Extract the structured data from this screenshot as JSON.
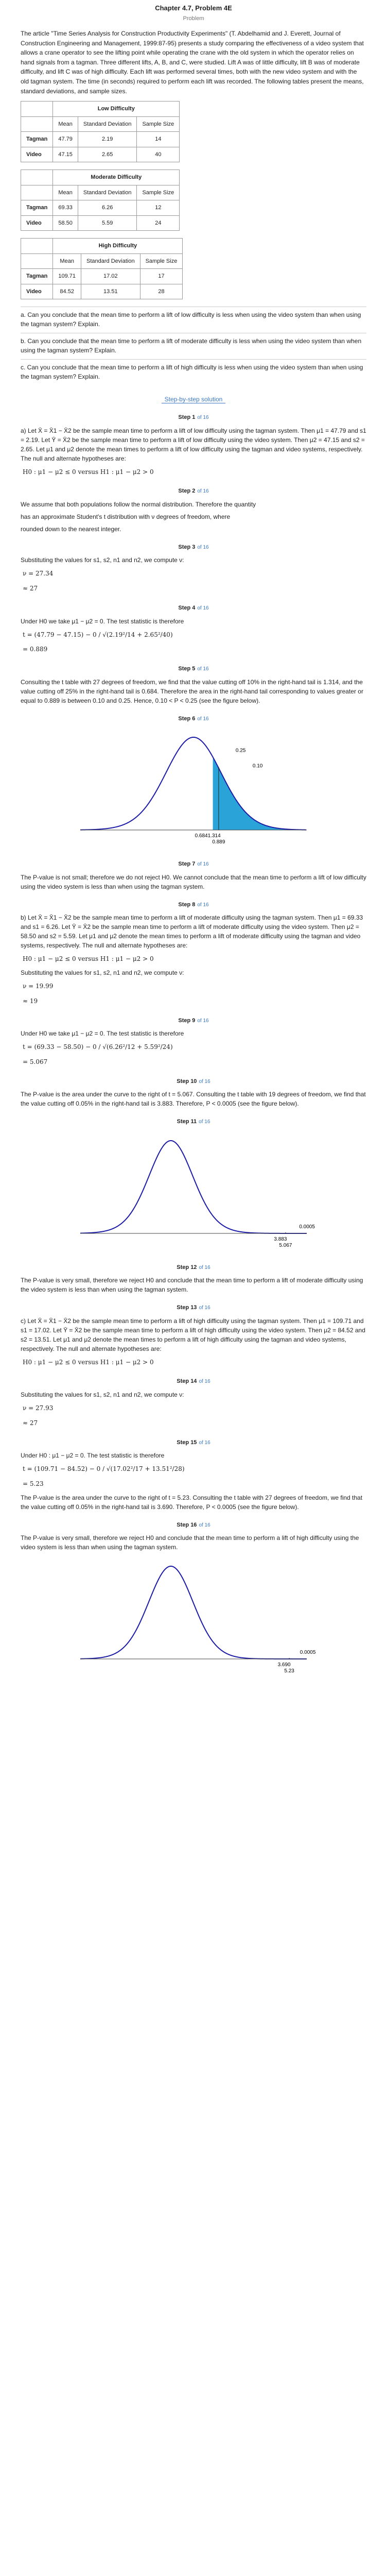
{
  "header": {
    "chapter_title": "Chapter 4.7, Problem 4E",
    "problem_label": "Problem"
  },
  "problem": {
    "text": "The article \"Time Series Analysis for Construction Productivity Experiments\" (T. Abdelhamid and J. Everett, Journal of Construction Engineering and Management, 1999:87-95) presents a study comparing the effectiveness of a video system that allows a crane operator to see the lifting point while operating the crane with the old system in which the operator relies on hand signals from a tagman. Three different lifts, A, B, and C, were studied. Lift A was of little difficulty, lift B was of moderate difficulty, and lift C was of high difficulty. Each lift was performed several times, both with the new video system and with the old tagman system. The time (in seconds) required to perform each lift was recorded. The following tables present the means, standard deviations, and sample sizes."
  },
  "tables": [
    {
      "caption": "Low Difficulty",
      "headers": [
        "",
        "Mean",
        "Standard Deviation",
        "Sample Size"
      ],
      "rows": [
        [
          "Tagman",
          "47.79",
          "2.19",
          "14"
        ],
        [
          "Video",
          "47.15",
          "2.65",
          "40"
        ]
      ]
    },
    {
      "caption": "Moderate Difficulty",
      "headers": [
        "",
        "Mean",
        "Standard Deviation",
        "Sample Size"
      ],
      "rows": [
        [
          "Tagman",
          "69.33",
          "6.26",
          "12"
        ],
        [
          "Video",
          "58.50",
          "5.59",
          "24"
        ]
      ]
    },
    {
      "caption": "High Difficulty",
      "headers": [
        "",
        "Mean",
        "Standard Deviation",
        "Sample Size"
      ],
      "rows": [
        [
          "Tagman",
          "109.71",
          "17.02",
          "17"
        ],
        [
          "Video",
          "84.52",
          "13.51",
          "28"
        ]
      ]
    }
  ],
  "questions": [
    "a. Can you conclude that the mean time to perform a lift of low difficulty is less when using the video system than when using the tagman system? Explain.",
    "b. Can you conclude that the mean time to perform a lift of moderate difficulty is less when using the video system than when using the tagman system? Explain.",
    "c. Can you conclude that the mean time to perform a lift of high difficulty is less when using the video system than when using the tagman system? Explain."
  ],
  "divider_label": "Step-by-step solution",
  "steps": [
    {
      "title": "Step 1",
      "sec": "of 16",
      "paras": [
        "a) Let X̄ = X̄1 − X̄2 be the sample mean time to perform a lift of low difficulty using the tagman system. Then μ1 = 47.79 and s1 = 2.19. Let Ȳ = X̄2 be the sample mean time to perform a lift of low difficulty using the video system. Then μ2 = 47.15 and s2 = 2.65. Let μ1 and μ2 denote the mean times to perform a lift of low difficulty using the tagman and video systems, respectively. The null and alternate hypotheses are:",
        "H0 : μ1 − μ2 ≤ 0   versus   H1 : μ1 − μ2 > 0"
      ]
    },
    {
      "title": "Step 2",
      "sec": "of 16",
      "paras": [
        "We assume that both populations follow the normal distribution. Therefore the quantity",
        "has an approximate Student's t distribution with ν degrees of freedom, where",
        "rounded down to the nearest integer."
      ]
    },
    {
      "title": "Step 3",
      "sec": "of 16",
      "paras": [
        "Substituting the values for s1, s2, n1 and n2, we compute ν:",
        "ν = 27.34",
        "≈ 27"
      ]
    },
    {
      "title": "Step 4",
      "sec": "of 16",
      "paras": [
        "Under H0 we take μ1 − μ2 = 0. The test statistic is therefore",
        "t = (47.79 − 47.15) − 0 / √(2.19²/14 + 2.65²/40)",
        "= 0.889"
      ]
    },
    {
      "title": "Step 5",
      "sec": "of 16",
      "paras": [
        "Consulting the t table with 27 degrees of freedom, we find that the value cutting off 10% in the right-hand tail is 1.314, and the value cutting off 25% in the right-hand tail is 0.684. Therefore the area in the right-hand tail corresponding to values greater or equal to 0.889 is between 0.10 and 0.25. Hence, 0.10 < P < 0.25 (see the figure below)."
      ]
    },
    {
      "title": "Step 6",
      "sec": "of 16",
      "paras": []
    },
    {
      "title": "Step 7",
      "sec": "of 16",
      "paras": [
        "The P-value is not small; therefore we do not reject H0. We cannot conclude that the mean time to perform a lift of low difficulty using the video system is less than when using the tagman system."
      ]
    },
    {
      "title": "Step 8",
      "sec": "of 16",
      "paras": [
        "b) Let X̄ = X̄1 − X̄2 be the sample mean time to perform a lift of moderate difficulty using the tagman system. Then μ1 = 69.33 and s1 = 6.26. Let Ȳ = X̄2 be the sample mean time to perform a lift of moderate difficulty using the video system. Then μ2 = 58.50 and s2 = 5.59. Let μ1 and μ2 denote the mean times to perform a lift of moderate difficulty using the tagman and video systems, respectively. The null and alternate hypotheses are:",
        "H0 : μ1 − μ2 ≤ 0   versus   H1 : μ1 − μ2 > 0",
        "Substituting the values for s1, s2, n1 and n2, we compute ν:",
        "ν = 19.99",
        "≈ 19"
      ]
    },
    {
      "title": "Step 9",
      "sec": "of 16",
      "paras": [
        "Under H0 we take μ1 − μ2 = 0. The test statistic is therefore",
        "t = (69.33 − 58.50) − 0 / √(6.26²/12 + 5.59²/24)",
        "= 5.067"
      ]
    },
    {
      "title": "Step 10",
      "sec": "of 16",
      "paras": [
        "The P-value is the area under the curve to the right of t = 5.067. Consulting the t table with 19 degrees of freedom, we find that the value cutting off 0.05% in the right-hand tail is 3.883. Therefore, P < 0.0005 (see the figure below)."
      ]
    },
    {
      "title": "Step 11",
      "sec": "of 16",
      "paras": []
    },
    {
      "title": "Step 12",
      "sec": "of 16",
      "paras": [
        "The P-value is very small, therefore we reject H0 and conclude that the mean time to perform a lift of moderate difficulty using the video system is less than when using the tagman system."
      ]
    },
    {
      "title": "Step 13",
      "sec": "of 16",
      "paras": [
        "c) Let X̄ = X̄1 − X̄2 be the sample mean time to perform a lift of high difficulty using the tagman system. Then μ1 = 109.71 and s1 = 17.02. Let Ȳ = X̄2 be the sample mean time to perform a lift of high difficulty using the video system. Then μ2 = 84.52 and s2 = 13.51. Let μ1 and μ2 denote the mean times to perform a lift of high difficulty using the tagman and video systems, respectively. The null and alternate hypotheses are:",
        "H0 : μ1 − μ2 ≤ 0   versus   H1 : μ1 − μ2 > 0"
      ]
    },
    {
      "title": "Step 14",
      "sec": "of 16",
      "paras": [
        "Substituting the values for s1, s2, n1 and n2, we compute ν:",
        "ν = 27.93",
        "≈ 27"
      ]
    },
    {
      "title": "Step 15",
      "sec": "of 16",
      "paras": [
        "Under H0 : μ1 − μ2 = 0. The test statistic is therefore",
        "t = (109.71 − 84.52) − 0 / √(17.02²/17 + 13.51²/28)",
        "= 5.23",
        "The P-value is the area under the curve to the right of t = 5.23. Consulting the t table with 27 degrees of freedom, we find that the value cutting off 0.05% in the right-hand tail is 3.690. Therefore, P < 0.0005 (see the figure below)."
      ]
    },
    {
      "title": "Step 16",
      "sec": "of 16",
      "paras": [
        "The P-value is very small, therefore we reject H0 and conclude that the mean time to perform a lift of high difficulty using the video system is less than when using the tagman system."
      ]
    }
  ],
  "chart_data": [
    {
      "type": "area",
      "df": 27,
      "t_stat": 0.889,
      "shade_from": 0.684,
      "labels": [
        "0.25",
        "0.10"
      ],
      "tick_labels": [
        "0.6841.314",
        "0.889"
      ],
      "shade_color": "#2aa4d8"
    },
    {
      "type": "area",
      "df": 19,
      "t_stat": 5.067,
      "labels": [
        "0.0005"
      ],
      "tick_labels": [
        "3.883",
        "5.067"
      ],
      "shade_color": "#2aa4d8"
    },
    {
      "type": "area",
      "df": 27,
      "t_stat": 5.23,
      "labels": [
        "0.0005"
      ],
      "tick_labels": [
        "3.690",
        "5.23"
      ],
      "shade_color": "#2aa4d8"
    }
  ]
}
